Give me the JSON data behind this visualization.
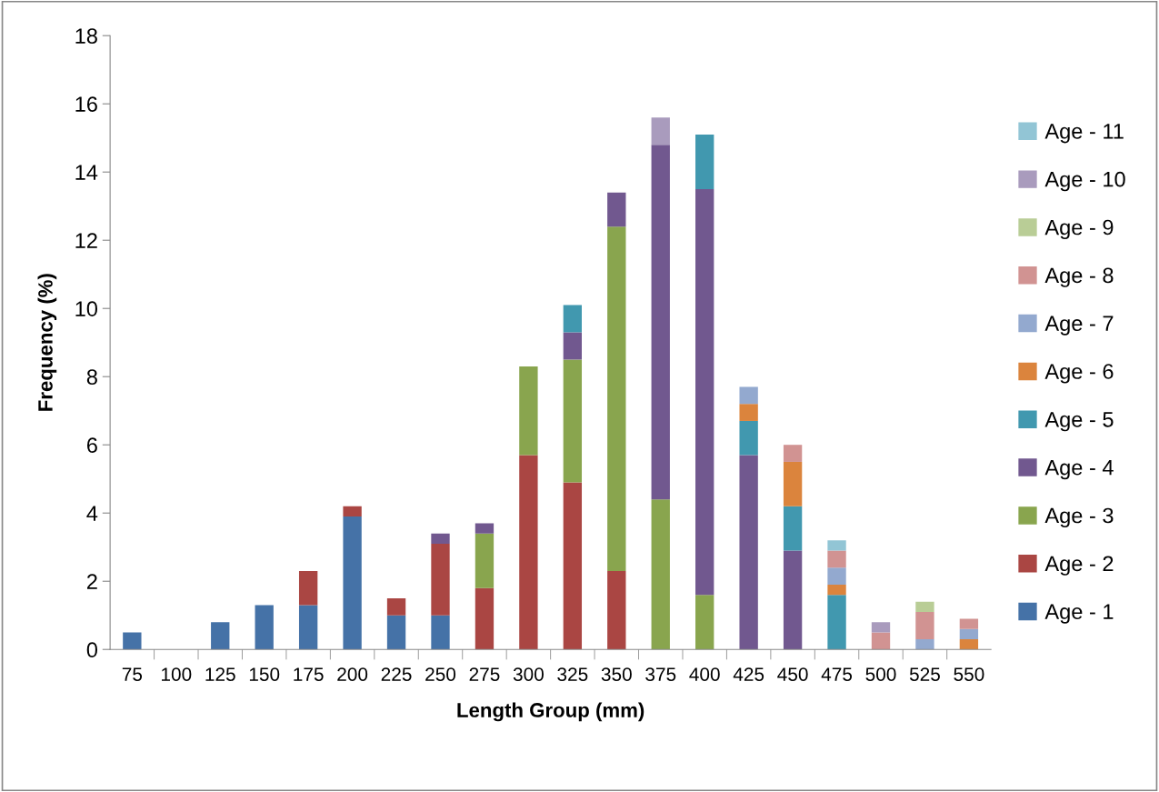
{
  "chart_data": {
    "type": "bar",
    "stacked": true,
    "xlabel": "Length Group (mm)",
    "ylabel": "Frequency (%)",
    "categories": [
      "75",
      "100",
      "125",
      "150",
      "175",
      "200",
      "225",
      "250",
      "275",
      "300",
      "325",
      "350",
      "375",
      "400",
      "425",
      "450",
      "475",
      "500",
      "525",
      "550"
    ],
    "ylim": [
      0,
      18
    ],
    "yticks": [
      0,
      2,
      4,
      6,
      8,
      10,
      12,
      14,
      16,
      18
    ],
    "grid": false,
    "legend": "right",
    "series": [
      {
        "name": "Age - 1",
        "color": "#4572a7",
        "values": [
          0.5,
          0,
          0.8,
          1.3,
          1.3,
          3.9,
          1.0,
          1.0,
          0,
          0,
          0,
          0,
          0,
          0,
          0,
          0,
          0,
          0,
          0,
          0
        ]
      },
      {
        "name": "Age - 2",
        "color": "#aa4643",
        "values": [
          0,
          0,
          0,
          0,
          1.0,
          0.3,
          0.5,
          2.1,
          1.8,
          5.7,
          4.9,
          2.3,
          0,
          0,
          0,
          0,
          0,
          0,
          0,
          0
        ]
      },
      {
        "name": "Age - 3",
        "color": "#89a54e",
        "values": [
          0,
          0,
          0,
          0,
          0,
          0,
          0,
          0,
          1.6,
          2.6,
          3.6,
          10.1,
          4.4,
          1.6,
          0,
          0,
          0,
          0,
          0,
          0
        ]
      },
      {
        "name": "Age - 4",
        "color": "#71588f",
        "values": [
          0,
          0,
          0,
          0,
          0,
          0,
          0,
          0.3,
          0.3,
          0,
          0.8,
          1.0,
          10.4,
          11.9,
          5.7,
          2.9,
          0,
          0,
          0,
          0
        ]
      },
      {
        "name": "Age - 5",
        "color": "#4198af",
        "values": [
          0,
          0,
          0,
          0,
          0,
          0,
          0,
          0,
          0,
          0,
          0.8,
          0,
          0,
          1.6,
          1.0,
          1.3,
          1.6,
          0,
          0,
          0
        ]
      },
      {
        "name": "Age - 6",
        "color": "#db843d",
        "values": [
          0,
          0,
          0,
          0,
          0,
          0,
          0,
          0,
          0,
          0,
          0,
          0,
          0,
          0,
          0.5,
          1.3,
          0.3,
          0,
          0,
          0.3
        ]
      },
      {
        "name": "Age - 7",
        "color": "#93a9cf",
        "values": [
          0,
          0,
          0,
          0,
          0,
          0,
          0,
          0,
          0,
          0,
          0,
          0,
          0,
          0,
          0.5,
          0,
          0.5,
          0,
          0.3,
          0.3
        ]
      },
      {
        "name": "Age - 8",
        "color": "#d19392",
        "values": [
          0,
          0,
          0,
          0,
          0,
          0,
          0,
          0,
          0,
          0,
          0,
          0,
          0,
          0,
          0,
          0.5,
          0.5,
          0.5,
          0.8,
          0.3
        ]
      },
      {
        "name": "Age - 9",
        "color": "#b9cd96",
        "values": [
          0,
          0,
          0,
          0,
          0,
          0,
          0,
          0,
          0,
          0,
          0,
          0,
          0,
          0,
          0,
          0,
          0,
          0,
          0.3,
          0
        ]
      },
      {
        "name": "Age - 10",
        "color": "#a99bbd",
        "values": [
          0,
          0,
          0,
          0,
          0,
          0,
          0,
          0,
          0,
          0,
          0,
          0,
          0.8,
          0,
          0,
          0,
          0,
          0.3,
          0,
          0
        ]
      },
      {
        "name": "Age - 11",
        "color": "#92c5d5",
        "values": [
          0,
          0,
          0,
          0,
          0,
          0,
          0,
          0,
          0,
          0,
          0,
          0,
          0,
          0,
          0,
          0,
          0.3,
          0,
          0,
          0
        ]
      }
    ]
  }
}
